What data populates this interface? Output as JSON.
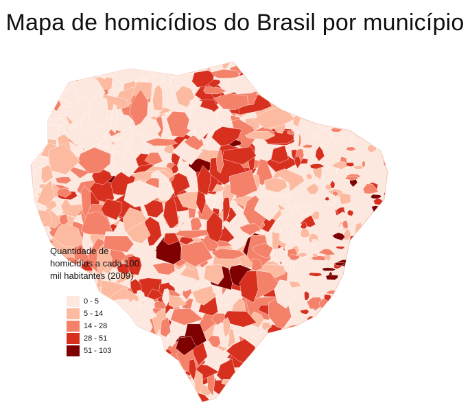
{
  "title": "Mapa de homicídios do Brasil por município",
  "legend": {
    "title_lines": [
      "Quantidade de",
      "homicídios a cada 100",
      "mil habitantes (2009)"
    ],
    "classes": [
      {
        "label": "0 - 5",
        "color": "#fde8df"
      },
      {
        "label": "5 - 14",
        "color": "#fcbba1"
      },
      {
        "label": "14 - 28",
        "color": "#f4826a"
      },
      {
        "label": "28 - 51",
        "color": "#d7301f"
      },
      {
        "label": "51 - 103",
        "color": "#7f0000"
      }
    ]
  }
}
